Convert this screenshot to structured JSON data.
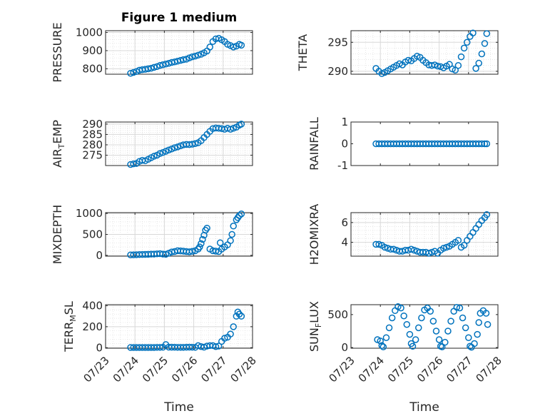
{
  "figure": {
    "title": "Figure 1 medium",
    "xlabel": "Time"
  },
  "colors": {
    "marker": "#0072BD",
    "axis": "#262626",
    "grid": "#d8d8d8"
  },
  "chart_data": [
    {
      "id": "pressure",
      "type": "scatter",
      "ylabel": "PRESSURE",
      "ylim": [
        770,
        1010
      ],
      "yticks": [
        800,
        900,
        1000
      ],
      "xlim": [
        0,
        5
      ],
      "grid": true,
      "x": [
        0.85,
        0.95,
        1.05,
        1.15,
        1.25,
        1.35,
        1.45,
        1.55,
        1.65,
        1.75,
        1.85,
        1.95,
        2.05,
        2.15,
        2.25,
        2.35,
        2.45,
        2.55,
        2.65,
        2.75,
        2.85,
        2.95,
        3.05,
        3.15,
        3.25,
        3.35,
        3.45,
        3.55,
        3.65,
        3.75,
        3.85,
        3.95,
        4.05,
        4.15,
        4.25,
        4.35,
        4.45,
        4.55,
        4.62
      ],
      "y": [
        775,
        780,
        785,
        792,
        795,
        797,
        800,
        803,
        808,
        812,
        818,
        822,
        826,
        830,
        835,
        838,
        842,
        846,
        850,
        853,
        860,
        866,
        870,
        875,
        880,
        888,
        898,
        920,
        950,
        965,
        968,
        960,
        950,
        935,
        928,
        920,
        925,
        935,
        930
      ]
    },
    {
      "id": "theta",
      "type": "scatter",
      "ylabel": "THETA",
      "ylim": [
        289.5,
        297
      ],
      "yticks": [
        290,
        295
      ],
      "xlim": [
        0,
        5
      ],
      "grid": true,
      "x": [
        0.85,
        0.95,
        1.05,
        1.15,
        1.25,
        1.35,
        1.45,
        1.55,
        1.65,
        1.75,
        1.85,
        1.95,
        2.05,
        2.15,
        2.25,
        2.35,
        2.45,
        2.55,
        2.65,
        2.75,
        2.85,
        2.95,
        3.05,
        3.15,
        3.25,
        3.35,
        3.45,
        3.55,
        3.65,
        3.75,
        3.85,
        3.95,
        4.05,
        4.15,
        4.25,
        4.35,
        4.45,
        4.55,
        4.62
      ],
      "y": [
        290.5,
        290.0,
        289.6,
        289.8,
        290.1,
        290.4,
        290.7,
        291.0,
        291.3,
        291.1,
        291.6,
        291.9,
        291.8,
        292.2,
        292.6,
        292.4,
        291.9,
        291.5,
        291.1,
        291.0,
        291.1,
        290.9,
        290.8,
        290.6,
        290.9,
        291.2,
        290.4,
        290.2,
        291.0,
        292.5,
        294.0,
        295.0,
        296.0,
        296.6,
        290.5,
        291.4,
        293.0,
        294.8,
        296.5
      ]
    },
    {
      "id": "air_temp",
      "type": "scatter",
      "ylabel": "AIR_TEMP",
      "ylim": [
        270,
        291
      ],
      "yticks": [
        275,
        280,
        285,
        290
      ],
      "xlim": [
        0,
        5
      ],
      "grid": true,
      "x": [
        0.85,
        0.95,
        1.05,
        1.15,
        1.25,
        1.35,
        1.45,
        1.55,
        1.65,
        1.75,
        1.85,
        1.95,
        2.05,
        2.15,
        2.25,
        2.35,
        2.45,
        2.55,
        2.65,
        2.75,
        2.85,
        2.95,
        3.05,
        3.15,
        3.25,
        3.35,
        3.45,
        3.55,
        3.65,
        3.75,
        3.85,
        3.95,
        4.05,
        4.15,
        4.25,
        4.35,
        4.45,
        4.55,
        4.62
      ],
      "y": [
        270.5,
        270.8,
        271.0,
        272.0,
        272.5,
        272.3,
        273.0,
        273.8,
        274.5,
        275.0,
        275.8,
        276.3,
        276.9,
        277.5,
        278.0,
        278.6,
        279.0,
        279.5,
        280.0,
        280.2,
        280.1,
        280.3,
        280.6,
        281.0,
        282.0,
        283.5,
        285.0,
        286.5,
        287.8,
        288.1,
        288.0,
        287.8,
        287.5,
        288.0,
        287.5,
        288.0,
        288.5,
        289.5,
        290.0
      ]
    },
    {
      "id": "rainfall",
      "type": "scatter",
      "ylabel": "RAINFALL",
      "ylim": [
        -1,
        1
      ],
      "yticks": [
        -1,
        0,
        1
      ],
      "xlim": [
        0,
        5
      ],
      "grid": false,
      "x": [
        0.85,
        0.95,
        1.05,
        1.15,
        1.25,
        1.35,
        1.45,
        1.55,
        1.65,
        1.75,
        1.85,
        1.95,
        2.05,
        2.15,
        2.25,
        2.35,
        2.45,
        2.55,
        2.65,
        2.75,
        2.85,
        2.95,
        3.05,
        3.15,
        3.25,
        3.35,
        3.45,
        3.55,
        3.65,
        3.75,
        3.85,
        3.95,
        4.05,
        4.15,
        4.25,
        4.35,
        4.45,
        4.55,
        4.62
      ],
      "y": [
        0,
        0,
        0,
        0,
        0,
        0,
        0,
        0,
        0,
        0,
        0,
        0,
        0,
        0,
        0,
        0,
        0,
        0,
        0,
        0,
        0,
        0,
        0,
        0,
        0,
        0,
        0,
        0,
        0,
        0,
        0,
        0,
        0,
        0,
        0,
        0,
        0,
        0,
        0
      ]
    },
    {
      "id": "mixdepth",
      "type": "scatter",
      "ylabel": "MIXDEPTH",
      "ylim": [
        -20,
        1020
      ],
      "yticks": [
        0,
        500,
        1000
      ],
      "xlim": [
        0,
        5
      ],
      "grid": true,
      "x": [
        0.85,
        0.95,
        1.05,
        1.15,
        1.25,
        1.35,
        1.45,
        1.55,
        1.65,
        1.75,
        1.85,
        1.95,
        2.05,
        2.15,
        2.25,
        2.35,
        2.45,
        2.55,
        2.65,
        2.75,
        2.85,
        2.95,
        3.05,
        3.15,
        3.2,
        3.25,
        3.3,
        3.35,
        3.4,
        3.45,
        3.55,
        3.65,
        3.75,
        3.85,
        3.9,
        3.95,
        4.05,
        4.15,
        4.25,
        4.3,
        4.35,
        4.45,
        4.5,
        4.55,
        4.62
      ],
      "y": [
        10,
        12,
        15,
        18,
        20,
        22,
        25,
        28,
        30,
        35,
        40,
        30,
        25,
        50,
        80,
        90,
        110,
        105,
        100,
        90,
        85,
        95,
        110,
        150,
        200,
        280,
        380,
        480,
        600,
        650,
        150,
        110,
        100,
        90,
        300,
        150,
        200,
        250,
        350,
        500,
        700,
        850,
        900,
        950,
        990
      ]
    },
    {
      "id": "h2omixra",
      "type": "scatter",
      "ylabel": "H2OMIXRA",
      "ylim": [
        2.6,
        7
      ],
      "yticks": [
        4,
        6
      ],
      "xlim": [
        0,
        5
      ],
      "grid": true,
      "x": [
        0.85,
        0.95,
        1.05,
        1.15,
        1.25,
        1.35,
        1.45,
        1.55,
        1.65,
        1.75,
        1.85,
        1.95,
        2.05,
        2.15,
        2.25,
        2.35,
        2.45,
        2.55,
        2.65,
        2.75,
        2.85,
        2.95,
        3.05,
        3.15,
        3.25,
        3.35,
        3.45,
        3.55,
        3.65,
        3.75,
        3.85,
        3.95,
        4.05,
        4.15,
        4.25,
        4.35,
        4.45,
        4.55,
        4.62
      ],
      "y": [
        3.8,
        3.8,
        3.7,
        3.5,
        3.4,
        3.3,
        3.3,
        3.2,
        3.1,
        3.1,
        3.2,
        3.2,
        3.3,
        3.2,
        3.1,
        3.0,
        3.0,
        3.0,
        2.9,
        3.0,
        3.1,
        2.9,
        3.2,
        3.4,
        3.5,
        3.6,
        3.8,
        4.0,
        4.2,
        3.5,
        3.7,
        4.2,
        4.6,
        5.0,
        5.4,
        5.8,
        6.2,
        6.5,
        6.8
      ]
    },
    {
      "id": "terr_msl",
      "type": "scatter",
      "ylabel": "TERR_MSL",
      "ylim": [
        -5,
        410
      ],
      "yticks": [
        0,
        200,
        400
      ],
      "xlim": [
        0,
        5
      ],
      "grid": true,
      "x": [
        0.85,
        0.95,
        1.05,
        1.15,
        1.25,
        1.35,
        1.45,
        1.55,
        1.65,
        1.75,
        1.85,
        1.95,
        2.05,
        2.15,
        2.25,
        2.35,
        2.45,
        2.55,
        2.65,
        2.75,
        2.85,
        2.95,
        3.05,
        3.15,
        3.25,
        3.35,
        3.45,
        3.55,
        3.65,
        3.75,
        3.85,
        3.95,
        4.05,
        4.15,
        4.25,
        4.35,
        4.45,
        4.5,
        4.55,
        4.62
      ],
      "y": [
        2,
        2,
        2,
        2,
        2,
        2,
        2,
        2,
        2,
        3,
        3,
        4,
        30,
        5,
        4,
        4,
        3,
        3,
        3,
        4,
        5,
        4,
        3,
        20,
        10,
        5,
        15,
        20,
        20,
        10,
        15,
        60,
        90,
        100,
        130,
        200,
        300,
        340,
        320,
        300
      ]
    },
    {
      "id": "sun_flux",
      "type": "scatter",
      "ylabel": "SUN_FLUX",
      "ylim": [
        -10,
        650
      ],
      "yticks": [
        0,
        500
      ],
      "xlim": [
        0,
        5
      ],
      "grid": false,
      "x": [
        0.9,
        1.0,
        1.05,
        1.1,
        1.2,
        1.3,
        1.4,
        1.5,
        1.6,
        1.7,
        1.8,
        1.9,
        2.0,
        2.05,
        2.1,
        2.2,
        2.3,
        2.4,
        2.5,
        2.6,
        2.7,
        2.8,
        2.9,
        3.0,
        3.05,
        3.1,
        3.2,
        3.3,
        3.4,
        3.5,
        3.6,
        3.7,
        3.8,
        3.9,
        4.0,
        4.05,
        4.1,
        4.2,
        4.3,
        4.35,
        4.4,
        4.5,
        4.6,
        4.65
      ],
      "y": [
        120,
        100,
        30,
        10,
        150,
        300,
        450,
        560,
        620,
        600,
        480,
        350,
        200,
        60,
        20,
        120,
        300,
        450,
        570,
        600,
        550,
        400,
        250,
        120,
        20,
        10,
        80,
        250,
        400,
        550,
        610,
        600,
        450,
        300,
        150,
        20,
        5,
        60,
        200,
        380,
        520,
        560,
        520,
        350
      ]
    }
  ],
  "xticks": {
    "values": [
      0,
      1,
      2,
      3,
      4,
      5
    ],
    "labels": [
      "07/23",
      "07/24",
      "07/25",
      "07/26",
      "07/27",
      "07/28"
    ]
  }
}
